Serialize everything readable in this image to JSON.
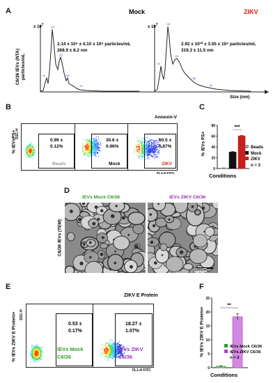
{
  "panelA": {
    "label": "A",
    "mock_title": "Mock",
    "zikv_title": "ZIKV",
    "ylabel_1": "C6/36 lEVs (NTA)",
    "ylabel_2": "particles/mL",
    "yexp": "x 10",
    "yexp_sup": "7",
    "xlabel": "Size (nm)",
    "mock_stat_1": "2.14 x 10⁹ ± 4.10 x 10⁸ particles/mL",
    "mock_stat_2": "268.9 ± 8.2 nm",
    "zikv_stat_1": "2.92 x 10¹⁰ ± 3.55 x 10⁹ particles/mL",
    "zikv_stat_2": "319.3 ± 11.5 nm"
  },
  "panelB": {
    "label": "B",
    "ylabel": "% lEVsPS+",
    "yaxis": "SSC-H",
    "xaxis": "FL1-H FITC",
    "marker": "Annexin-V",
    "plots": [
      {
        "value": "0.99 ±\n0.12%",
        "name": "Beads",
        "color": "#9a9a9a"
      },
      {
        "value": "30.6 ±\n0.96%",
        "name": "Mock",
        "color": "#111111"
      },
      {
        "value": "60.5 ±\n0.87%",
        "name": "ZIKV",
        "color": "#e11b1b"
      }
    ]
  },
  "panelC": {
    "label": "C",
    "ylabel": "% lEVs PS+",
    "xlabel": "Conditions",
    "sig": "***",
    "n": "n = 3",
    "legend": [
      {
        "name": "Beads",
        "color": "#9a9a9a"
      },
      {
        "name": "Mock",
        "color": "#111111"
      },
      {
        "name": "ZIKV",
        "color": "#c81e1e"
      }
    ]
  },
  "panelD": {
    "label": "D",
    "ylabel": "C6/36 lEVs (TEM)",
    "title_mock": "lEVs Mock C6/36",
    "title_zikv": "lEVs ZIKV C6/36",
    "scale": "1000nm"
  },
  "panelE": {
    "label": "E",
    "ylabel": "% lEVs ZIKV E Protein+",
    "yaxis": "SSC-H",
    "xaxis": "FL1-H FITC",
    "marker": "ZIKV E Protein",
    "mock_value": "0.53 ±\n0.17%",
    "mock_name": "lEVs Mock\nC6/36",
    "zikv_value": "18.27 ±\n1.07%",
    "zikv_name": "lEVs ZIKV\nC6/36"
  },
  "panelF": {
    "label": "F",
    "ylabel": "% lEVs ZIKV E Protein+",
    "xlabel": "Conditions",
    "sig": "**",
    "n": "n = 3",
    "legend": [
      {
        "name": "lEVs Mock C6/36",
        "color": "#2e9a2e"
      },
      {
        "name": "lEVs ZIKV C6/36",
        "color": "#b23cc9"
      }
    ]
  },
  "chart_data": [
    {
      "type": "bar",
      "panel": "C",
      "categories": [
        "Beads",
        "Mock",
        "ZIKV"
      ],
      "values": [
        0.99,
        30.6,
        60.5
      ],
      "errors": [
        0.12,
        0.96,
        0.87
      ],
      "colors": [
        "#9a9a9a",
        "#111111",
        "#c81e1e"
      ],
      "ylabel": "% lEVs PS+",
      "xlabel": "Conditions",
      "ylim": [
        0,
        80
      ],
      "yticks": [
        0,
        20,
        40,
        60,
        80
      ]
    },
    {
      "type": "bar",
      "panel": "F",
      "categories": [
        "lEVs Mock C6/36",
        "lEVs ZIKV C6/36"
      ],
      "values": [
        0.53,
        18.27
      ],
      "errors": [
        0.17,
        1.07
      ],
      "colors": [
        "#2e9a2e",
        "#b23cc9"
      ],
      "ylabel": "% lEVs ZIKV E Protein+",
      "xlabel": "Conditions",
      "ylim": [
        0,
        25
      ],
      "yticks": [
        0,
        5,
        10,
        15,
        20,
        25
      ]
    }
  ]
}
